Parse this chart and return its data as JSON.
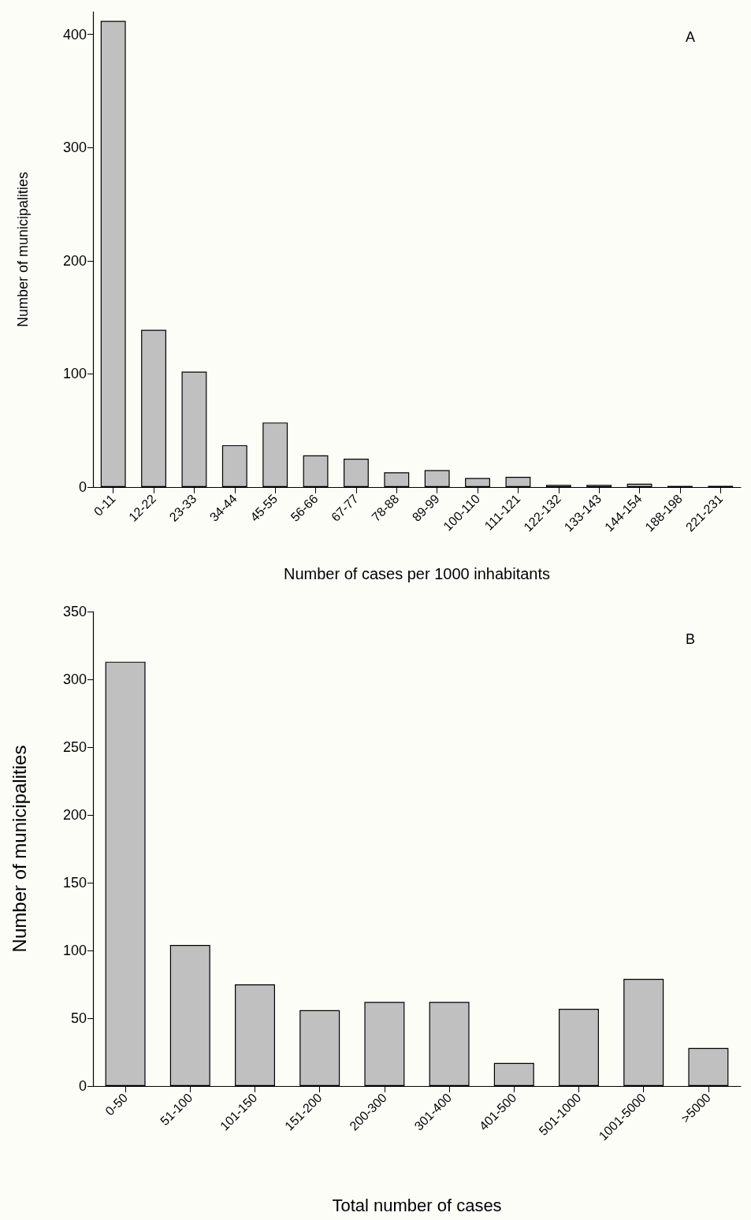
{
  "chart_data": [
    {
      "type": "bar",
      "categories": [
        "0-11",
        "12-22",
        "23-33",
        "34-44",
        "45-55",
        "56-66",
        "67-77",
        "78-88",
        "89-99",
        "100-110",
        "111-121",
        "122-132",
        "133-143",
        "144-154",
        "188-198",
        "221-231"
      ],
      "series": [
        {
          "color": "#c0c0c0",
          "values": [
            412,
            139,
            102,
            37,
            57,
            28,
            25,
            13,
            15,
            8,
            9,
            2,
            2,
            3,
            1,
            1
          ]
        }
      ],
      "xlabel": "Number of cases per 1000 inhabitants",
      "ylabel": "Number of municipalities",
      "ylim": [
        0,
        420
      ],
      "yticks": [
        0,
        100,
        200,
        300,
        400
      ],
      "annotations": [
        "A"
      ]
    },
    {
      "type": "bar",
      "categories": [
        "0-50",
        "51-100",
        "101-150",
        "151-200",
        "200-300",
        "301-400",
        "401-500",
        "501-1000",
        "1001-5000",
        ">5000"
      ],
      "series": [
        {
          "color": "#c0c0c0",
          "values": [
            313,
            104,
            75,
            56,
            62,
            62,
            17,
            57,
            79,
            28
          ]
        }
      ],
      "xlabel": "Total number of cases",
      "ylabel": "Number of municipalities",
      "ylim": [
        0,
        350
      ],
      "yticks": [
        0,
        50,
        100,
        150,
        200,
        250,
        300,
        350
      ],
      "annotations": [
        "B"
      ]
    }
  ]
}
